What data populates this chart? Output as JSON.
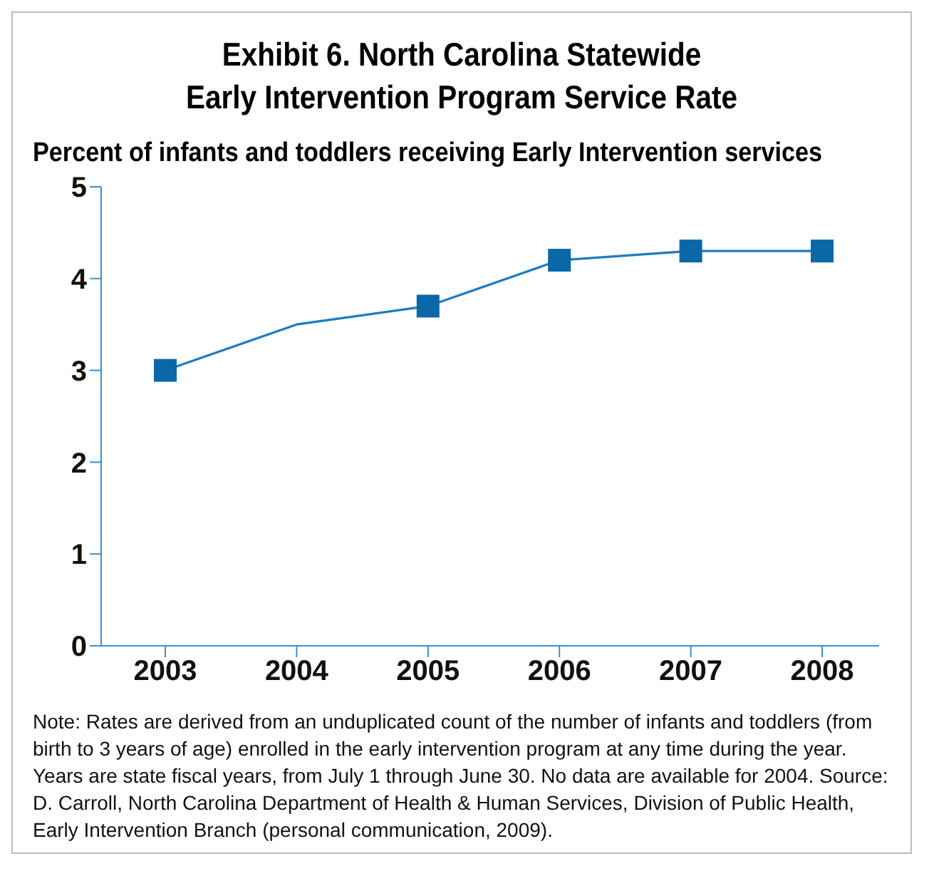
{
  "chart_data": {
    "type": "line",
    "title": "Exhibit 6. North Carolina Statewide\nEarly Intervention Program Service Rate",
    "ylabel": "Percent of infants and toddlers receiving Early Intervention services",
    "categories": [
      "2003",
      "2004",
      "2005",
      "2006",
      "2007",
      "2008"
    ],
    "series": [
      {
        "color": "#1a7dc0",
        "marker": "none",
        "values": [
          3.0,
          3.5,
          3.7,
          4.2,
          4.3,
          4.3
        ]
      },
      {
        "type": "scatter",
        "color": "#0a68a8",
        "marker": "square",
        "values": [
          3.0,
          null,
          3.7,
          4.2,
          4.3,
          4.3
        ]
      }
    ],
    "ylim": [
      0,
      5
    ],
    "yticks": [
      0,
      1,
      2,
      3,
      4,
      5
    ],
    "grid": false,
    "annotations": [
      "Note: Rates are derived from an unduplicated count of the number of infants and toddlers (from birth to 3 years of age) enrolled in the early intervention program at any time during the year. Years are state fiscal years, from July 1 through June 30. No data are available for 2004. Source: D. Carroll, North Carolina Department of Health & Human Services, Division of Public Health, Early Intervention Branch (personal communication, 2009)."
    ]
  }
}
